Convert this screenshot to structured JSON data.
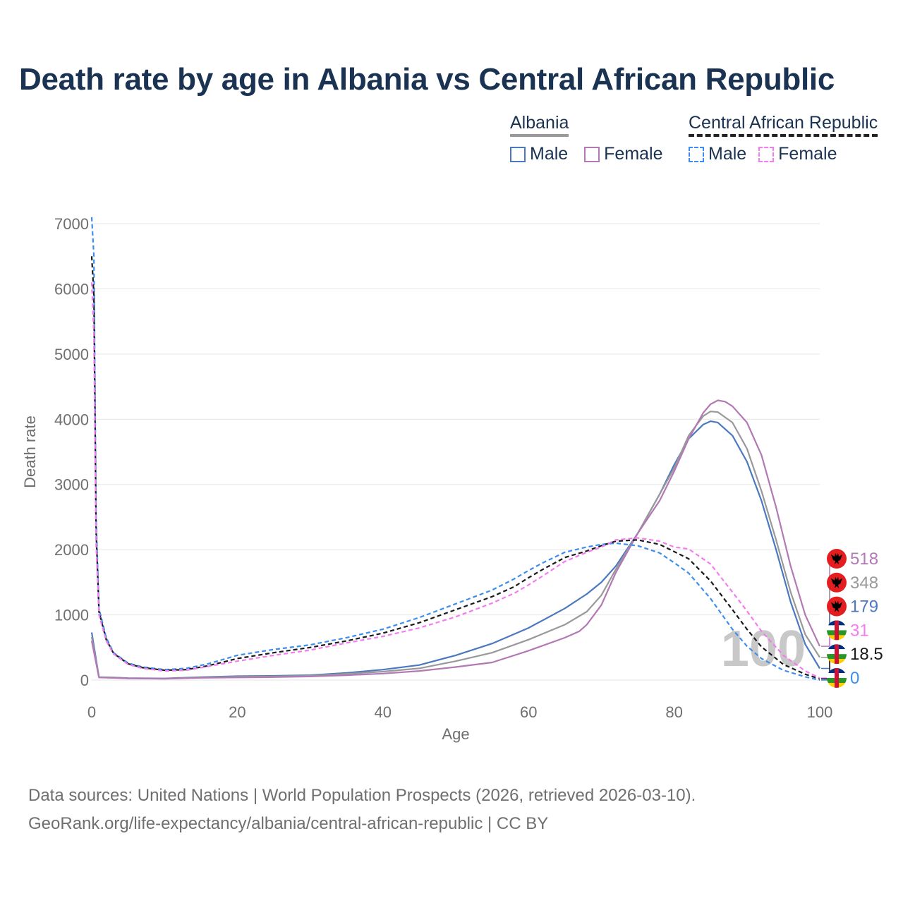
{
  "title": "Death rate by age in Albania vs Central African Republic",
  "legend": {
    "groups": [
      {
        "name": "Albania",
        "style": "solid",
        "items": [
          {
            "label": "Male",
            "color": "#4c78bf"
          },
          {
            "label": "Female",
            "color": "#b279b5"
          }
        ]
      },
      {
        "name": "Central African Republic",
        "style": "dashed",
        "items": [
          {
            "label": "Male",
            "color": "#3d8ef0"
          },
          {
            "label": "Female",
            "color": "#f57cf0"
          }
        ]
      }
    ]
  },
  "chart_data": {
    "type": "line",
    "xlabel": "Age",
    "ylabel": "Death rate",
    "xlim": [
      0,
      100
    ],
    "ylim": [
      0,
      7000
    ],
    "xticks": [
      0,
      20,
      40,
      60,
      80,
      100
    ],
    "yticks": [
      0,
      1000,
      2000,
      3000,
      4000,
      5000,
      6000,
      7000
    ],
    "grid": true,
    "watermark": "100",
    "series": [
      {
        "name": "Albania Male",
        "color": "#4c78bf",
        "dash": false,
        "x": [
          0,
          1,
          3,
          5,
          10,
          15,
          20,
          25,
          30,
          35,
          40,
          45,
          50,
          55,
          60,
          65,
          68,
          70,
          72,
          75,
          78,
          80,
          82,
          84,
          85,
          86,
          88,
          90,
          92,
          94,
          96,
          98,
          100
        ],
        "y": [
          730,
          45,
          40,
          30,
          25,
          45,
          60,
          65,
          75,
          110,
          160,
          230,
          380,
          560,
          800,
          1100,
          1320,
          1500,
          1750,
          2250,
          2850,
          3300,
          3700,
          3920,
          3970,
          3950,
          3750,
          3350,
          2750,
          2000,
          1200,
          550,
          179
        ]
      },
      {
        "name": "Albania Average",
        "color": "#999999",
        "dash": false,
        "x": [
          0,
          1,
          3,
          5,
          10,
          15,
          20,
          25,
          30,
          35,
          40,
          45,
          50,
          55,
          60,
          65,
          68,
          70,
          72,
          75,
          78,
          80,
          82,
          84,
          85,
          86,
          88,
          90,
          92,
          94,
          96,
          98,
          100
        ],
        "y": [
          660,
          42,
          36,
          27,
          22,
          40,
          50,
          55,
          65,
          95,
          130,
          180,
          290,
          420,
          620,
          850,
          1050,
          1300,
          1700,
          2250,
          2850,
          3250,
          3750,
          4050,
          4120,
          4110,
          3950,
          3550,
          2900,
          2150,
          1350,
          700,
          348
        ]
      },
      {
        "name": "Albania Female",
        "color": "#b279b5",
        "dash": false,
        "x": [
          0,
          1,
          3,
          5,
          10,
          15,
          20,
          25,
          30,
          35,
          40,
          45,
          50,
          55,
          60,
          65,
          67,
          68,
          70,
          72,
          75,
          78,
          80,
          82,
          84,
          85,
          86,
          87,
          88,
          90,
          92,
          94,
          96,
          98,
          100
        ],
        "y": [
          600,
          40,
          33,
          25,
          20,
          35,
          40,
          45,
          55,
          75,
          100,
          140,
          200,
          270,
          450,
          650,
          750,
          850,
          1150,
          1650,
          2250,
          2750,
          3200,
          3700,
          4100,
          4230,
          4290,
          4270,
          4200,
          3950,
          3450,
          2650,
          1750,
          1000,
          518
        ]
      },
      {
        "name": "Central African Republic Male",
        "color": "#3d8ef0",
        "dash": true,
        "x": [
          0,
          0.3,
          0.6,
          1,
          2,
          3,
          5,
          7,
          10,
          13,
          16,
          20,
          25,
          30,
          35,
          40,
          45,
          50,
          55,
          58,
          60,
          62,
          65,
          68,
          70,
          72,
          75,
          78,
          80,
          82,
          85,
          88,
          90,
          92,
          95,
          98,
          100
        ],
        "y": [
          7100,
          6500,
          2500,
          1100,
          650,
          420,
          260,
          200,
          160,
          180,
          250,
          380,
          470,
          540,
          650,
          780,
          960,
          1170,
          1380,
          1550,
          1680,
          1800,
          1960,
          2040,
          2080,
          2100,
          2060,
          1950,
          1800,
          1640,
          1250,
          780,
          520,
          330,
          150,
          50,
          0
        ]
      },
      {
        "name": "Central African Republic Average",
        "color": "#1a1a1a",
        "dash": true,
        "x": [
          0,
          0.3,
          0.6,
          1,
          2,
          3,
          5,
          7,
          10,
          13,
          16,
          20,
          25,
          30,
          35,
          40,
          45,
          50,
          55,
          58,
          60,
          62,
          65,
          68,
          70,
          72,
          75,
          78,
          80,
          82,
          85,
          88,
          90,
          92,
          95,
          98,
          100
        ],
        "y": [
          6500,
          5900,
          2300,
          1050,
          620,
          410,
          250,
          190,
          150,
          160,
          220,
          330,
          420,
          500,
          600,
          720,
          880,
          1080,
          1280,
          1430,
          1570,
          1700,
          1880,
          1980,
          2060,
          2130,
          2150,
          2080,
          1970,
          1860,
          1520,
          1080,
          780,
          510,
          240,
          90,
          18.5
        ]
      },
      {
        "name": "Central African Republic Female",
        "color": "#f57cf0",
        "dash": true,
        "x": [
          0,
          0.3,
          0.6,
          1,
          2,
          3,
          5,
          7,
          10,
          13,
          16,
          20,
          25,
          30,
          35,
          40,
          45,
          50,
          55,
          58,
          60,
          62,
          65,
          68,
          70,
          72,
          75,
          78,
          80,
          82,
          85,
          88,
          90,
          92,
          95,
          98,
          100
        ],
        "y": [
          6100,
          5300,
          2100,
          1000,
          600,
          400,
          240,
          180,
          140,
          150,
          210,
          290,
          380,
          460,
          570,
          670,
          800,
          970,
          1180,
          1330,
          1460,
          1600,
          1820,
          1960,
          2040,
          2150,
          2180,
          2130,
          2040,
          2010,
          1780,
          1350,
          1060,
          750,
          380,
          140,
          31
        ]
      }
    ],
    "end_labels": [
      {
        "value": "518",
        "color": "#b279b5",
        "flag": "albania"
      },
      {
        "value": "348",
        "color": "#999999",
        "flag": "albania"
      },
      {
        "value": "179",
        "color": "#4c78bf",
        "flag": "albania"
      },
      {
        "value": "31",
        "color": "#f57cf0",
        "flag": "car"
      },
      {
        "value": "18.5",
        "color": "#1a1a1a",
        "flag": "car"
      },
      {
        "value": "0",
        "color": "#3d8ef0",
        "flag": "car"
      }
    ]
  },
  "footer": {
    "line1": "Data sources: United Nations | World Population Prospects (2026, retrieved 2026-03-10).",
    "line2": "GeoRank.org/life-expectancy/albania/central-african-republic | CC BY"
  }
}
